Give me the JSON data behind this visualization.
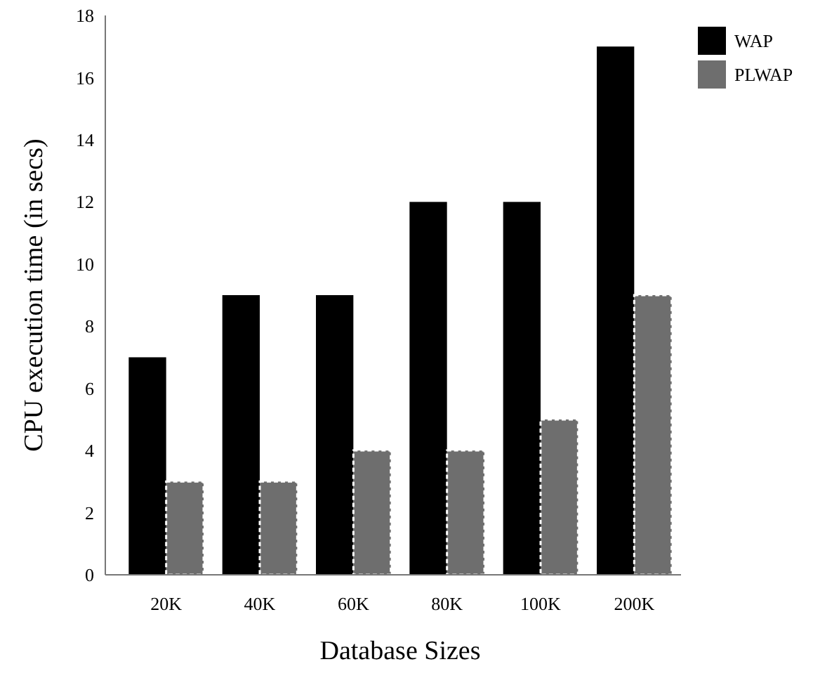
{
  "chart_data": {
    "type": "bar",
    "xlabel": "Database Sizes",
    "ylabel": "CPU execution time (in secs)",
    "categories": [
      "20K",
      "40K",
      "60K",
      "80K",
      "100K",
      "200K"
    ],
    "series": [
      {
        "name": "WAP",
        "color": "#000000",
        "values": [
          7,
          9,
          9,
          12,
          12,
          17
        ]
      },
      {
        "name": "PLWAP",
        "color": "#6e6e6e",
        "values": [
          3,
          3,
          4,
          4,
          5,
          9
        ]
      }
    ],
    "ylim": [
      0,
      18
    ],
    "yticks": [
      0,
      2,
      4,
      6,
      8,
      10,
      12,
      14,
      16,
      18
    ],
    "grid": false,
    "legend": "top right"
  }
}
